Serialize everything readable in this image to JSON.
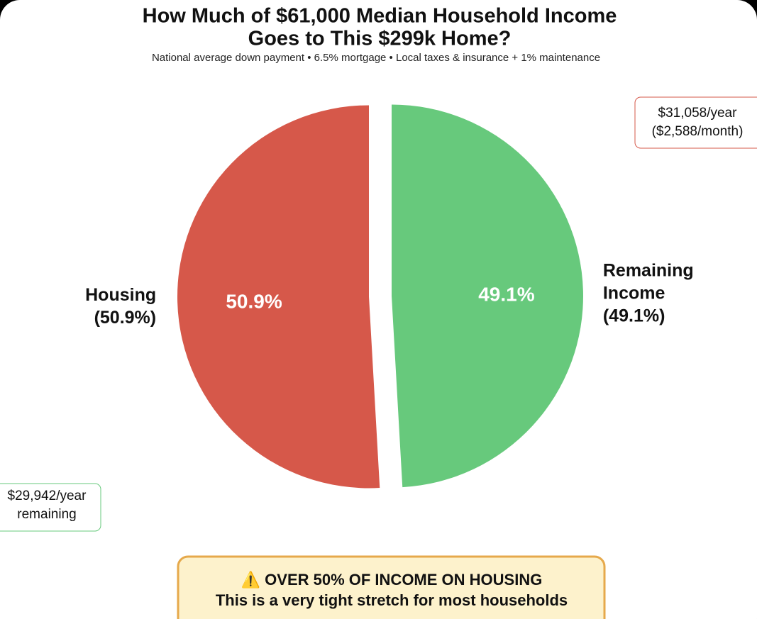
{
  "chart_data": {
    "type": "pie",
    "title": [
      "How Much of $61,000 Median Household Income",
      "Goes to This $299k Home?"
    ],
    "subtitle": "National average down payment • 6.5% mortgage • Local taxes & insurance + 1% maintenance",
    "categories": [
      "Housing",
      "Remaining Income"
    ],
    "values": [
      50.9,
      49.1
    ],
    "value_labels": [
      "50.9%",
      "49.1%"
    ],
    "outer_labels": [
      [
        "Housing",
        "(50.9%)"
      ],
      [
        "Remaining",
        "Income",
        "(49.1%)"
      ]
    ],
    "colors": [
      "#d6584a",
      "#67c97c"
    ],
    "annotations": [
      [
        "$31,058/year",
        "($2,588/month)"
      ],
      [
        "$29,942/year",
        "remaining"
      ]
    ],
    "warning": [
      "⚠️  OVER 50% OF INCOME ON HOUSING",
      "This is a very tight stretch for most households"
    ]
  }
}
